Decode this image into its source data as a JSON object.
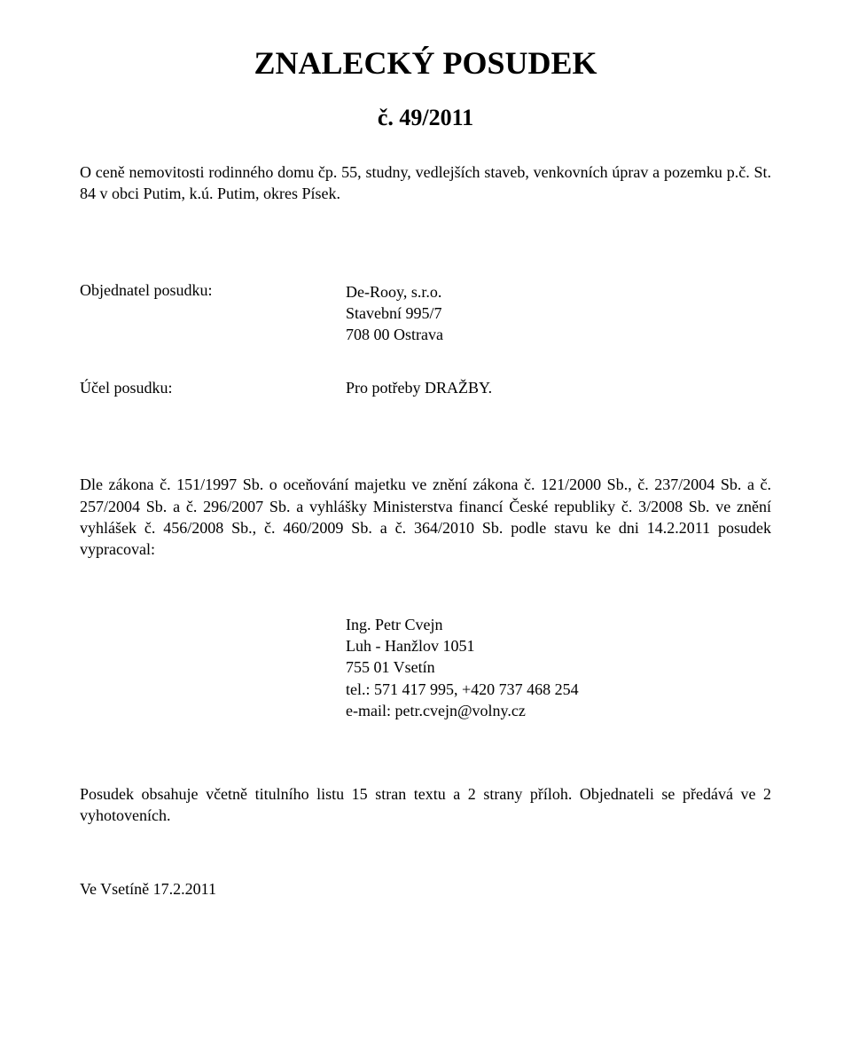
{
  "title": "ZNALECKÝ  POSUDEK",
  "doc_number": "č. 49/2011",
  "subject": "O ceně nemovitosti rodinného domu čp. 55, studny, vedlejších staveb, venkovních úprav a pozemku p.č. St. 84 v obci Putim, k.ú. Putim, okres Písek.",
  "client": {
    "label": "Objednatel posudku:",
    "name": "De-Rooy, s.r.o.",
    "street": "Stavební 995/7",
    "city": "708 00 Ostrava"
  },
  "purpose": {
    "label": "Účel posudku:",
    "text": "Pro potřeby DRAŽBY."
  },
  "legal_basis": "Dle zákona č. 151/1997 Sb. o oceňování majetku ve znění zákona č. 121/2000 Sb., č. 237/2004 Sb. a č. 257/2004 Sb. a č. 296/2007 Sb. a vyhlášky Ministerstva financí České republiky č. 3/2008 Sb. ve znění vyhlášek č. 456/2008 Sb., č. 460/2009 Sb. a č. 364/2010 Sb. podle stavu ke dni 14.2.2011 posudek vypracoval:",
  "author": {
    "name": "Ing. Petr Cvejn",
    "street": "Luh - Hanžlov 1051",
    "city": "755 01 Vsetín",
    "tel": "tel.: 571 417 995, +420 737 468 254",
    "email": "e-mail: petr.cvejn@volny.cz"
  },
  "contains": "Posudek obsahuje včetně titulního listu 15 stran textu a 2 strany příloh. Objednateli se předává ve 2 vyhotoveních.",
  "place_date": "Ve Vsetíně 17.2.2011"
}
